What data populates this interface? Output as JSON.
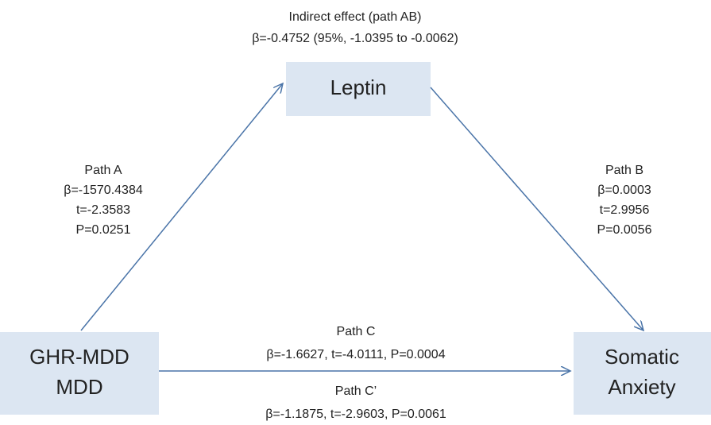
{
  "nodes": [
    {
      "label": "Leptin"
    },
    {
      "label": [
        "GHR-MDD",
        "MDD"
      ]
    },
    {
      "label": [
        "Somatic",
        "Anxiety"
      ]
    }
  ],
  "indirect": [
    "Indirect effect (path AB)",
    "β=-0.4752 (95%, -1.0395 to -0.0062)"
  ],
  "path_a": [
    "Path A",
    "β=-1570.4384",
    "t=-2.3583",
    "P=0.0251"
  ],
  "path_b": [
    "Path B",
    "β=0.0003",
    "t=2.9956",
    "P=0.0056"
  ],
  "path_c": [
    "Path C",
    "β=-1.6627, t=-4.0111, P=0.0004"
  ],
  "path_c_prime": [
    "Path C’",
    "β=-1.1875, t=-2.9603, P=0.0061"
  ]
}
